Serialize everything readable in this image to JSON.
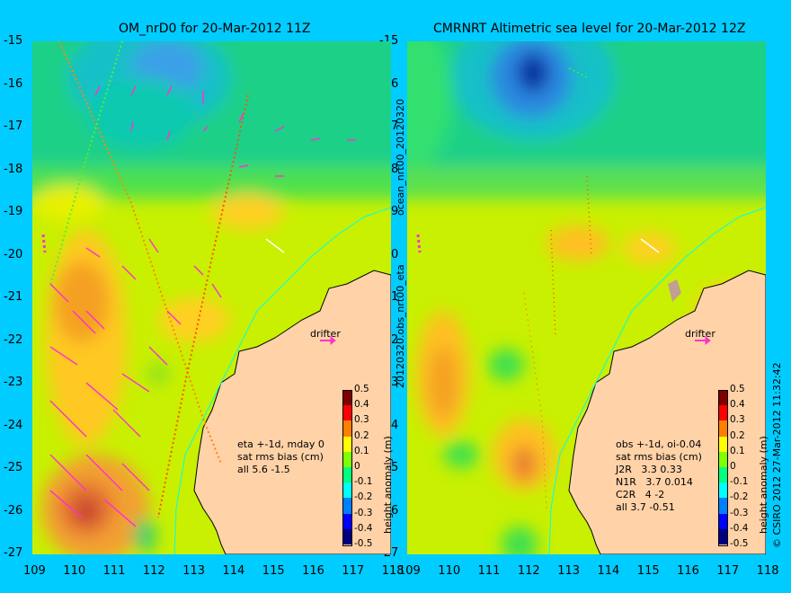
{
  "left_panel": {
    "title": "OM_nrD0 for 20-Mar-2012 11Z",
    "notes": [
      "eta +-1d, mday 0",
      "sat rms bias (cm)",
      "all 5.6 -1.5"
    ],
    "drifter_label": "drifter"
  },
  "right_panel": {
    "title": "CMRNRT Altimetric sea level  for 20-Mar-2012 12Z",
    "notes": [
      "obs +-1d, oi-0.04",
      "sat rms bias (cm)",
      "J2R   3.3 0.33",
      "N1R   3.7 0.014",
      "C2R   4 -2",
      "all 3.7 -0.51"
    ],
    "drifter_label": "drifter"
  },
  "side_labels": {
    "middle_top": "ocean_nrt00_20120320",
    "middle_bottom": "20120320.obs_nrt00_eta",
    "right_edge": "© CSIRO 2012   27-Mar-2012 11:32:42"
  },
  "axes": {
    "lat_ticks": [
      "-15",
      "-16",
      "-17",
      "-18",
      "-19",
      "-20",
      "-21",
      "-22",
      "-23",
      "-24",
      "-25",
      "-26",
      "-27"
    ],
    "lon_ticks": [
      "109",
      "110",
      "111",
      "112",
      "113",
      "114",
      "115",
      "116",
      "117",
      "118"
    ]
  },
  "colorbar": {
    "label": "height anomaly (m)",
    "ticks": [
      "0.5",
      "0.4",
      "0.3",
      "0.2",
      "0.1",
      "0",
      "-0.1",
      "-0.2",
      "-0.3",
      "-0.4",
      "-0.5"
    ],
    "colors": [
      "#00007f",
      "#0000ff",
      "#007fff",
      "#00ffff",
      "#00ff7f",
      "#7fff00",
      "#ffff00",
      "#ff7f00",
      "#ff0000",
      "#7f0000"
    ]
  },
  "colors": {
    "background": "#00ccff",
    "land": "#ffd2a8",
    "vectors": "#ff33cc",
    "drifter": "#ff33cc"
  }
}
